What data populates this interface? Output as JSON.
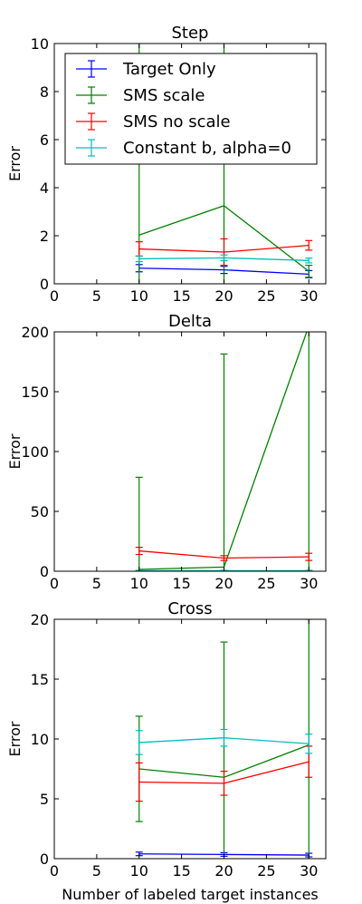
{
  "figure": {
    "xlabel": "Number of labeled target instances"
  },
  "chart_data": [
    {
      "type": "line",
      "title": "Step",
      "xlabel": "",
      "ylabel": "Error",
      "xlim": [
        0,
        32
      ],
      "ylim": [
        0,
        10
      ],
      "xticks": [
        0,
        5,
        10,
        15,
        20,
        25,
        30
      ],
      "xtick_labels": [
        "0",
        "5",
        "10",
        "15",
        "20",
        "25",
        "30"
      ],
      "yticks": [
        0,
        2,
        4,
        6,
        8,
        10
      ],
      "ytick_labels": [
        "0",
        "2",
        "4",
        "6",
        "8",
        "10"
      ],
      "grid": false,
      "legend": "top-left",
      "x": [
        10,
        20,
        30
      ],
      "series": [
        {
          "name": "Target Only",
          "color": "#0000ff",
          "values": [
            0.65,
            0.58,
            0.4
          ],
          "err": [
            0.15,
            0.15,
            0.15
          ]
        },
        {
          "name": "SMS scale",
          "color": "#008000",
          "values": [
            2.03,
            3.25,
            0.52
          ],
          "err": [
            12,
            12,
            0.25
          ]
        },
        {
          "name": "SMS no scale",
          "color": "#ff0000",
          "values": [
            1.45,
            1.32,
            1.6
          ],
          "err": [
            0.3,
            0.55,
            0.2
          ]
        },
        {
          "name": "Constant b, alpha=0",
          "color": "#00bfbf",
          "values": [
            1.04,
            1.08,
            0.97
          ],
          "err": [
            0.12,
            0.12,
            0.1
          ]
        }
      ]
    },
    {
      "type": "line",
      "title": "Delta",
      "xlabel": "",
      "ylabel": "Error",
      "xlim": [
        0,
        32
      ],
      "ylim": [
        0,
        200
      ],
      "xticks": [
        0,
        5,
        10,
        15,
        20,
        25,
        30
      ],
      "xtick_labels": [
        "0",
        "5",
        "10",
        "15",
        "20",
        "25",
        "30"
      ],
      "yticks": [
        0,
        50,
        100,
        150,
        200
      ],
      "ytick_labels": [
        "0",
        "50",
        "100",
        "150",
        "200"
      ],
      "grid": false,
      "x": [
        10,
        20,
        30
      ],
      "series": [
        {
          "name": "Target Only",
          "color": "#0000ff",
          "values": [
            0.3,
            0.3,
            0.3
          ],
          "err": [
            0.2,
            0.2,
            0.2
          ]
        },
        {
          "name": "SMS scale",
          "color": "#008000",
          "values": [
            1.5,
            3.5,
            205
          ],
          "err": [
            77,
            178,
            210
          ]
        },
        {
          "name": "SMS no scale",
          "color": "#ff0000",
          "values": [
            17,
            11,
            12
          ],
          "err": [
            3,
            2,
            3
          ]
        },
        {
          "name": "Constant b, alpha=0",
          "color": "#00bfbf",
          "values": [
            0.5,
            0.5,
            0.5
          ],
          "err": [
            0.3,
            0.3,
            0.3
          ]
        }
      ]
    },
    {
      "type": "line",
      "title": "Cross",
      "xlabel": "Number of labeled target instances",
      "ylabel": "Error",
      "xlim": [
        0,
        32
      ],
      "ylim": [
        0,
        20
      ],
      "xticks": [
        0,
        5,
        10,
        15,
        20,
        25,
        30
      ],
      "xtick_labels": [
        "0",
        "5",
        "10",
        "15",
        "20",
        "25",
        "30"
      ],
      "yticks": [
        0,
        5,
        10,
        15,
        20
      ],
      "ytick_labels": [
        "0",
        "5",
        "10",
        "15",
        "20"
      ],
      "grid": false,
      "x": [
        10,
        20,
        30
      ],
      "series": [
        {
          "name": "Target Only",
          "color": "#0000ff",
          "values": [
            0.4,
            0.35,
            0.3
          ],
          "err": [
            0.15,
            0.15,
            0.15
          ]
        },
        {
          "name": "SMS scale",
          "color": "#008000",
          "values": [
            7.5,
            6.8,
            9.5
          ],
          "err": [
            4.4,
            11.3,
            10.5
          ]
        },
        {
          "name": "SMS no scale",
          "color": "#ff0000",
          "values": [
            6.4,
            6.3,
            8.1
          ],
          "err": [
            1.6,
            1.0,
            1.3
          ]
        },
        {
          "name": "Constant b, alpha=0",
          "color": "#00bfbf",
          "values": [
            9.7,
            10.1,
            9.6
          ],
          "err": [
            1.0,
            0.7,
            0.8
          ]
        }
      ]
    }
  ]
}
